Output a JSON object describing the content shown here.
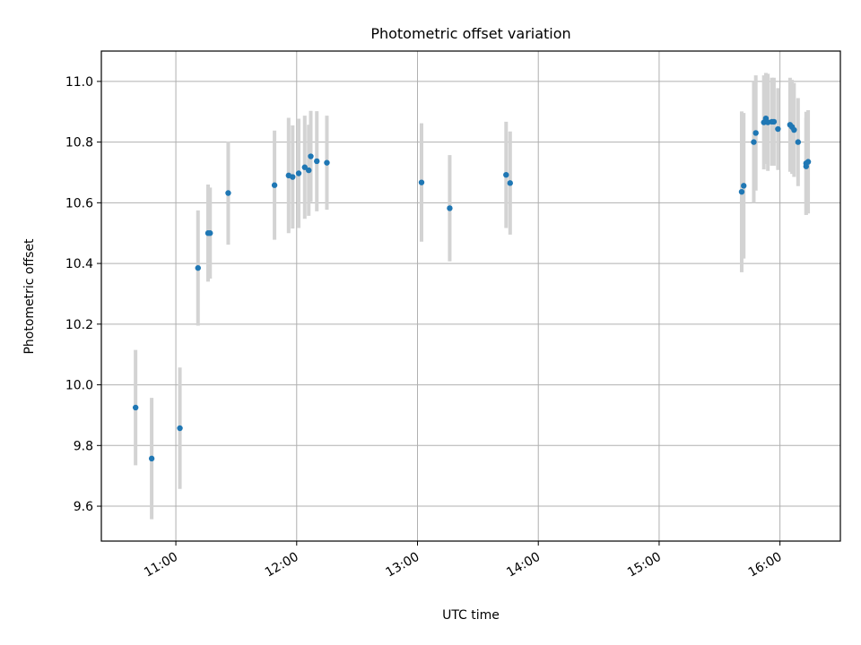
{
  "chart_data": {
    "type": "scatter",
    "title": "Photometric offset variation",
    "xlabel": "UTC time",
    "ylabel": "Photometric offset",
    "xlim": [
      "10:23",
      "16:30"
    ],
    "ylim": [
      9.485,
      11.1
    ],
    "x_ticks": [
      "11:00",
      "12:00",
      "13:00",
      "14:00",
      "15:00",
      "16:00"
    ],
    "y_ticks": [
      "9.6",
      "9.8",
      "10.0",
      "10.2",
      "10.4",
      "10.6",
      "10.8",
      "11.0"
    ],
    "grid": true,
    "colors": {
      "point": "#1f77b4",
      "errorbar": "#d3d3d3",
      "grid": "#b0b0b0"
    },
    "points": [
      {
        "t": "10:40",
        "y": 9.925,
        "err": 0.19
      },
      {
        "t": "10:48",
        "y": 9.757,
        "err": 0.2
      },
      {
        "t": "11:02",
        "y": 9.857,
        "err": 0.2
      },
      {
        "t": "11:11",
        "y": 10.385,
        "err": 0.19
      },
      {
        "t": "11:16",
        "y": 10.5,
        "err": 0.16
      },
      {
        "t": "11:17",
        "y": 10.5,
        "err": 0.15
      },
      {
        "t": "11:26",
        "y": 10.632,
        "err": 0.17
      },
      {
        "t": "11:49",
        "y": 10.658,
        "err": 0.18
      },
      {
        "t": "11:56",
        "y": 10.69,
        "err": 0.19
      },
      {
        "t": "11:58",
        "y": 10.685,
        "err": 0.17
      },
      {
        "t": "12:01",
        "y": 10.697,
        "err": 0.18
      },
      {
        "t": "12:04",
        "y": 10.717,
        "err": 0.17
      },
      {
        "t": "12:06",
        "y": 10.707,
        "err": 0.15
      },
      {
        "t": "12:07",
        "y": 10.753,
        "err": 0.15
      },
      {
        "t": "12:10",
        "y": 10.737,
        "err": 0.165
      },
      {
        "t": "12:15",
        "y": 10.732,
        "err": 0.155
      },
      {
        "t": "13:02",
        "y": 10.667,
        "err": 0.195
      },
      {
        "t": "13:16",
        "y": 10.582,
        "err": 0.175
      },
      {
        "t": "13:44",
        "y": 10.692,
        "err": 0.175
      },
      {
        "t": "13:46",
        "y": 10.665,
        "err": 0.17
      },
      {
        "t": "15:41",
        "y": 10.636,
        "err": 0.265
      },
      {
        "t": "15:42",
        "y": 10.656,
        "err": 0.24
      },
      {
        "t": "15:47",
        "y": 10.8,
        "err": 0.2
      },
      {
        "t": "15:48",
        "y": 10.83,
        "err": 0.19
      },
      {
        "t": "15:52",
        "y": 10.865,
        "err": 0.155
      },
      {
        "t": "15:53",
        "y": 10.878,
        "err": 0.15
      },
      {
        "t": "15:54",
        "y": 10.865,
        "err": 0.16
      },
      {
        "t": "15:56",
        "y": 10.867,
        "err": 0.145
      },
      {
        "t": "15:57",
        "y": 10.867,
        "err": 0.145
      },
      {
        "t": "15:59",
        "y": 10.843,
        "err": 0.135
      },
      {
        "t": "16:05",
        "y": 10.857,
        "err": 0.155
      },
      {
        "t": "16:06",
        "y": 10.85,
        "err": 0.155
      },
      {
        "t": "16:07",
        "y": 10.84,
        "err": 0.155
      },
      {
        "t": "16:09",
        "y": 10.8,
        "err": 0.145
      },
      {
        "t": "16:13",
        "y": 10.72,
        "err": 0.16
      },
      {
        "t": "16:13",
        "y": 10.73,
        "err": 0.17
      },
      {
        "t": "16:14",
        "y": 10.735,
        "err": 0.17
      }
    ]
  }
}
